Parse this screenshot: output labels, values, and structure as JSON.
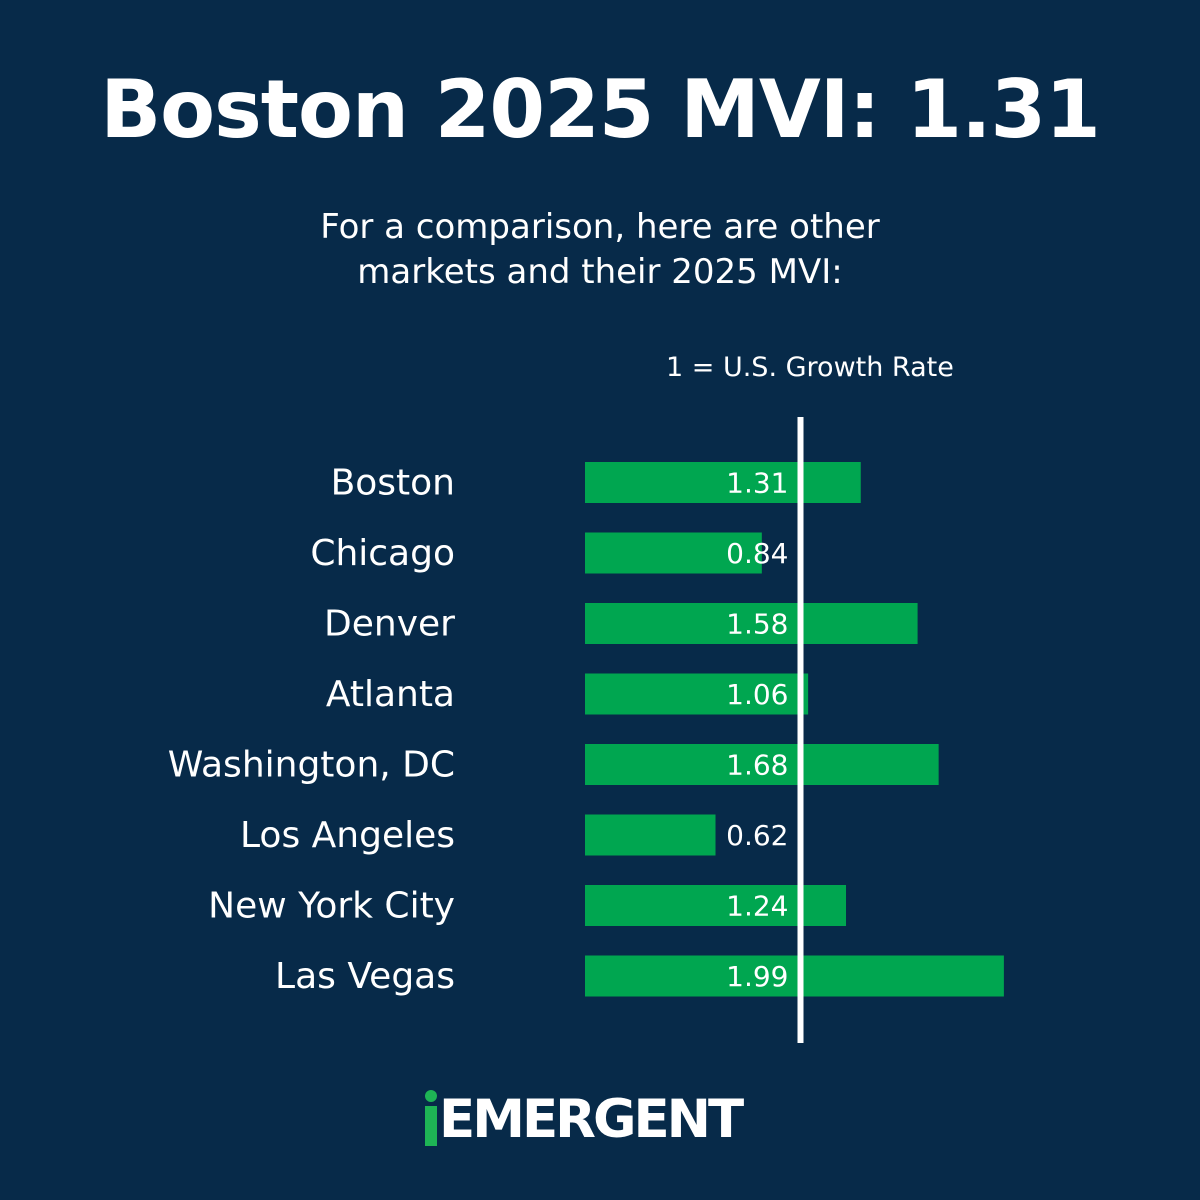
{
  "title": "Boston 2025 MVI: 1.31",
  "subtitle_lines": [
    "For a comparison, here are other",
    "markets and their 2025 MVI:"
  ],
  "reference_label": "1 = U.S. Growth Rate",
  "logo_text": "EMERGENT",
  "colors": {
    "background": "#072a49",
    "bar": "#00a650",
    "reference_line": "#ffffff",
    "text": "#ffffff",
    "logo_accent": "#1eb455"
  },
  "chart_data": {
    "type": "bar",
    "orientation": "horizontal",
    "categories": [
      "Boston",
      "Chicago",
      "Denver",
      "Atlanta",
      "Washington, DC",
      "Los Angeles",
      "New York City",
      "Las Vegas"
    ],
    "values": [
      1.31,
      0.84,
      1.58,
      1.06,
      1.68,
      0.62,
      1.24,
      1.99
    ],
    "value_labels": [
      "1.31",
      "0.84",
      "1.58",
      "1.06",
      "1.68",
      "0.62",
      "1.24",
      "1.99"
    ],
    "reference_value": 1,
    "title": "",
    "xlabel": "",
    "ylabel": ""
  }
}
